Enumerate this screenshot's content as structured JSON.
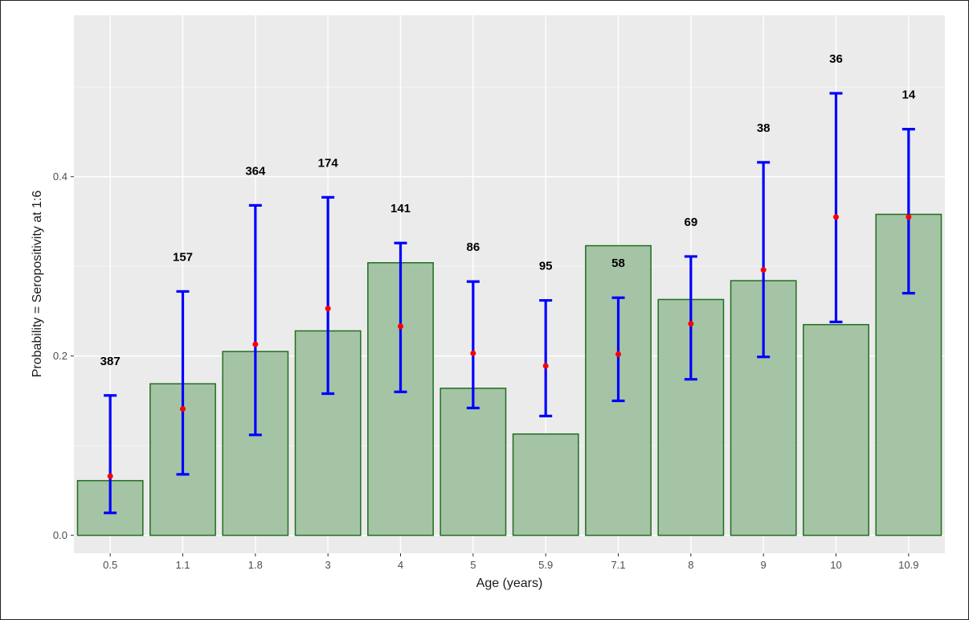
{
  "chart_data": {
    "type": "bar",
    "xlabel": "Age (years)",
    "ylabel": "Probability = Seropositivity at 1:6",
    "categories": [
      "0.5",
      "1.1",
      "1.8",
      "3",
      "4",
      "5",
      "5.9",
      "7.1",
      "8",
      "9",
      "10",
      "10.9"
    ],
    "values": [
      0.061,
      0.169,
      0.205,
      0.228,
      0.304,
      0.164,
      0.113,
      0.323,
      0.263,
      0.284,
      0.235,
      0.358
    ],
    "point_estimates": [
      0.066,
      0.141,
      0.213,
      0.253,
      0.233,
      0.203,
      0.189,
      0.202,
      0.236,
      0.296,
      0.355,
      0.355
    ],
    "ci_lower": [
      0.025,
      0.068,
      0.112,
      0.158,
      0.16,
      0.142,
      0.133,
      0.15,
      0.174,
      0.199,
      0.238,
      0.27
    ],
    "ci_upper": [
      0.156,
      0.272,
      0.368,
      0.377,
      0.326,
      0.283,
      0.262,
      0.265,
      0.311,
      0.416,
      0.493,
      0.453
    ],
    "counts": [
      "387",
      "157",
      "364",
      "174",
      "141",
      "86",
      "95",
      "58",
      "69",
      "38",
      "36",
      "14"
    ],
    "yticks": [
      "0.0",
      "0.2",
      "0.4"
    ],
    "ylim": [
      -0.02,
      0.58
    ],
    "grid": true,
    "colors": {
      "bar_fill": "#a5c4a5",
      "bar_stroke": "#1f6e1f",
      "error_bar": "#0000ff",
      "point": "#ff0000",
      "panel": "#ebebeb",
      "grid": "#ffffff"
    }
  }
}
